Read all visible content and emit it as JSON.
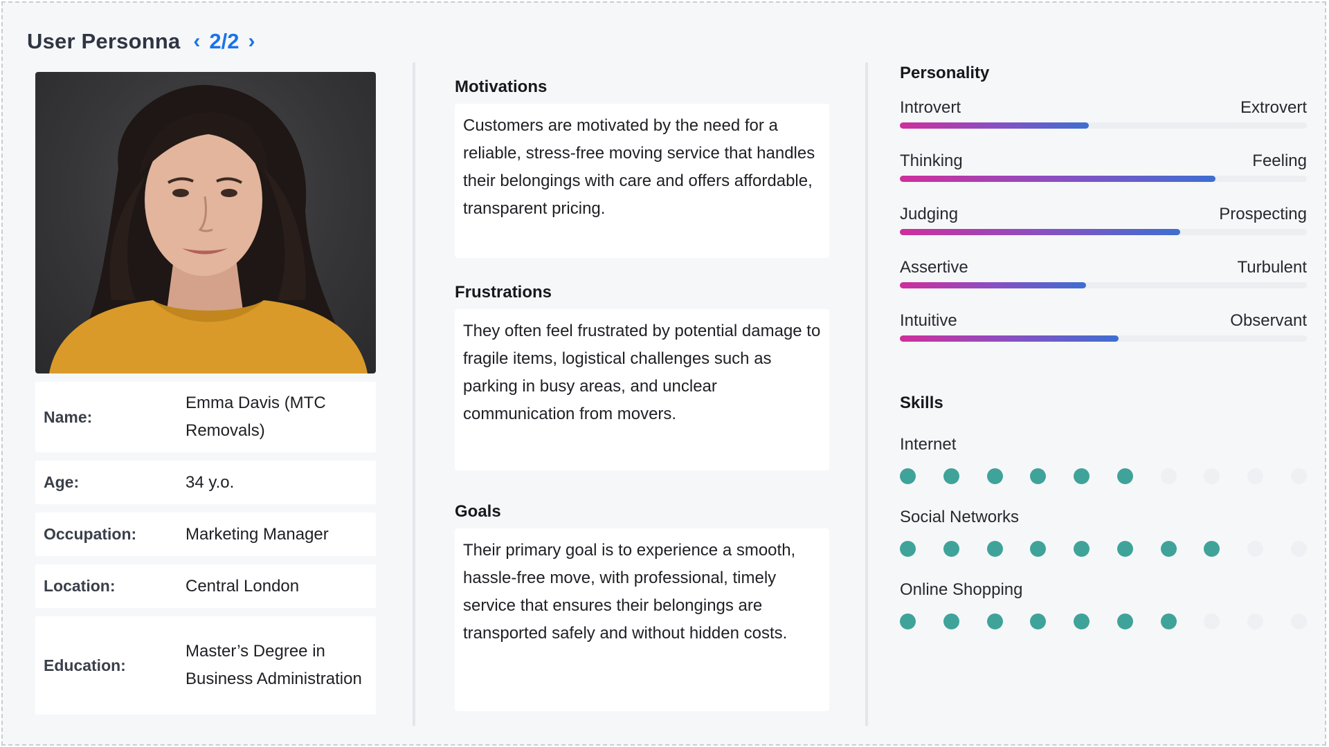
{
  "header": {
    "title": "User Personna",
    "page": "2/2",
    "prev_icon": "chevron-left-icon",
    "next_icon": "chevron-right-icon",
    "accent_color": "#1a73e8"
  },
  "profile": {
    "photo": "portrait-photo",
    "fields": [
      {
        "label": "Name:",
        "value": "Emma Davis (MTC Removals)"
      },
      {
        "label": "Age:",
        "value": "34 y.o."
      },
      {
        "label": "Occupation:",
        "value": "Marketing Manager"
      },
      {
        "label": "Location:",
        "value": "Central London"
      },
      {
        "label": "Education:",
        "value": "Master’s Degree in Business Administration"
      }
    ]
  },
  "sections": {
    "motivations": {
      "title": "Motivations",
      "text": "Customers are motivated by the need for a reliable, stress-free moving service that handles their belongings with care and offers affordable, transparent pricing."
    },
    "frustrations": {
      "title": "Frustrations",
      "text": "They often feel frustrated by potential damage to fragile items, logistical challenges such as parking in busy areas, and unclear communication from movers."
    },
    "goals": {
      "title": "Goals",
      "text": "Their primary goal is to experience a smooth, hassle-free move, with professional, timely service that ensures their belongings are transported safely and without hidden costs."
    }
  },
  "personality": {
    "title": "Personality",
    "traits": [
      {
        "left": "Introvert",
        "right": "Extrovert",
        "level": 0.465
      },
      {
        "left": "Thinking",
        "right": "Feeling",
        "level": 0.775
      },
      {
        "left": "Judging",
        "right": "Prospecting",
        "level": 0.688
      },
      {
        "left": "Assertive",
        "right": "Turbulent",
        "level": 0.458
      },
      {
        "left": "Intuitive",
        "right": "Observant",
        "level": 0.538
      }
    ]
  },
  "skills": {
    "title": "Skills",
    "max": 10,
    "items": [
      {
        "name": "Internet",
        "rating": 6
      },
      {
        "name": "Social Networks",
        "rating": 8
      },
      {
        "name": "Online Shopping",
        "rating": 7
      }
    ],
    "on_color": "#3fa39a",
    "off_color": "#eef0f3"
  }
}
